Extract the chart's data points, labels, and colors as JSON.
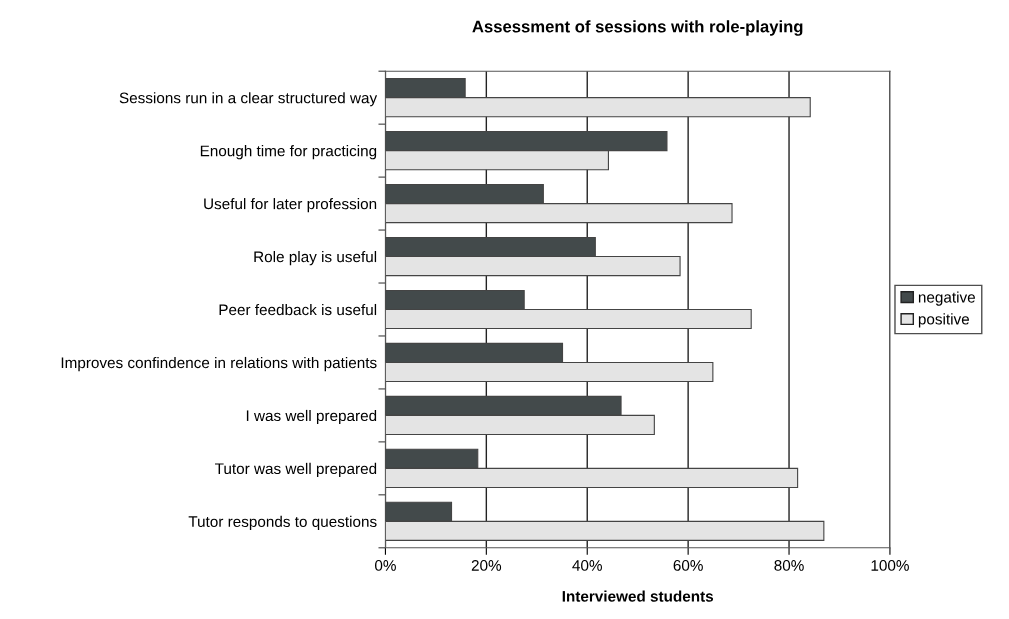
{
  "chart_data": {
    "type": "bar",
    "orientation": "horizontal",
    "title": "Assessment of sessions with role-playing",
    "xlabel": "Interviewed students",
    "categories": [
      "Sessions run in a clear structured way",
      "Enough time for practicing",
      "Useful for later profession",
      "Role play is useful",
      "Peer feedback is useful",
      "Improves confindence in relations with patients",
      "I was well prepared",
      "Tutor was well prepared",
      "Tutor responds to questions"
    ],
    "series": [
      {
        "name": "negative",
        "color": "#434a4b",
        "values": [
          15.8,
          55.8,
          31.3,
          41.6,
          27.5,
          35.1,
          46.7,
          18.3,
          13.1
        ]
      },
      {
        "name": "positive",
        "color": "#e4e4e4",
        "values": [
          84.2,
          44.2,
          68.7,
          58.4,
          72.5,
          64.9,
          53.3,
          81.7,
          86.9
        ]
      }
    ],
    "xlim": [
      0,
      100
    ],
    "xticks": [
      {
        "value": 0,
        "label": "0%"
      },
      {
        "value": 20,
        "label": "20%"
      },
      {
        "value": 40,
        "label": "40%"
      },
      {
        "value": 60,
        "label": "60%"
      },
      {
        "value": 80,
        "label": "80%"
      },
      {
        "value": 100,
        "label": "100%"
      }
    ],
    "grid": "x",
    "legend": "right"
  }
}
